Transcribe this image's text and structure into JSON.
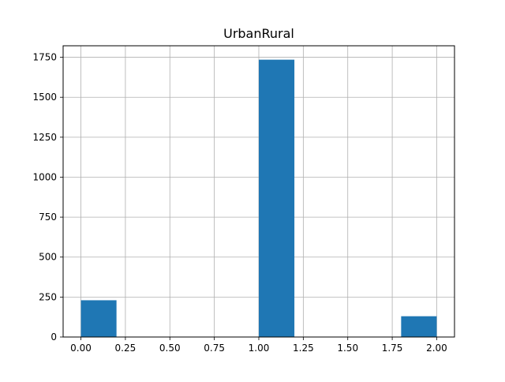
{
  "chart_data": {
    "type": "bar",
    "title": "UrbanRural",
    "xlabel": "",
    "ylabel": "",
    "bins": [
      {
        "x0": 0.0,
        "x1": 0.2,
        "value": 230
      },
      {
        "x0": 0.2,
        "x1": 0.4,
        "value": 0
      },
      {
        "x0": 0.4,
        "x1": 0.6,
        "value": 0
      },
      {
        "x0": 0.6,
        "x1": 0.8,
        "value": 0
      },
      {
        "x0": 0.8,
        "x1": 1.0,
        "value": 0
      },
      {
        "x0": 1.0,
        "x1": 1.2,
        "value": 1735
      },
      {
        "x0": 1.2,
        "x1": 1.4,
        "value": 0
      },
      {
        "x0": 1.4,
        "x1": 1.6,
        "value": 0
      },
      {
        "x0": 1.6,
        "x1": 1.8,
        "value": 0
      },
      {
        "x0": 1.8,
        "x1": 2.0,
        "value": 130
      }
    ],
    "xlim": [
      -0.1,
      2.1
    ],
    "ylim": [
      0,
      1822
    ],
    "xticks": [
      "0.00",
      "0.25",
      "0.50",
      "0.75",
      "1.00",
      "1.25",
      "1.50",
      "1.75",
      "2.00"
    ],
    "yticks": [
      "0",
      "250",
      "500",
      "750",
      "1000",
      "1250",
      "1500",
      "1750"
    ],
    "grid": true,
    "bar_color": "#1f77b4",
    "grid_color": "#b0b0b0"
  }
}
